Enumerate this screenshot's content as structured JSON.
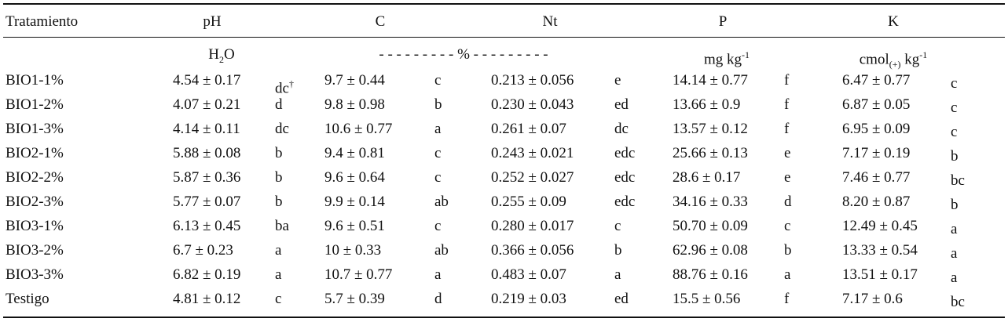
{
  "table": {
    "headers": [
      "Tratamiento",
      "pH",
      "C",
      "Nt",
      "P",
      "K"
    ],
    "units": [
      {
        "base": "H",
        "sub": "2",
        "after": "O"
      },
      {
        "base": "- - - - - - - - - % - - - - - - - - -"
      },
      {
        "base": "mg kg",
        "sup": "-1"
      },
      {
        "base": "cmol",
        "sub": "(+)",
        "after": " kg",
        "sup": "-1"
      }
    ],
    "rows": [
      {
        "name": "BIO1-1%",
        "cells": [
          {
            "value": "4.54 ± 0.17",
            "letter": "dc",
            "mark": "†"
          },
          {
            "value": "9.7 ± 0.44",
            "letter": "c"
          },
          {
            "value": "0.213 ± 0.056",
            "letter": "e"
          },
          {
            "value": "14.14 ± 0.77",
            "letter": "f"
          },
          {
            "value": "6.47 ± 0.77",
            "letter": "c"
          }
        ]
      },
      {
        "name": "BIO1-2%",
        "cells": [
          {
            "value": "4.07 ± 0.21",
            "letter": "d"
          },
          {
            "value": "9.8 ± 0.98",
            "letter": "b"
          },
          {
            "value": "0.230 ± 0.043",
            "letter": "ed"
          },
          {
            "value": "13.66 ± 0.9",
            "letter": "f"
          },
          {
            "value": "6.87 ± 0.05",
            "letter": "c"
          }
        ]
      },
      {
        "name": "BIO1-3%",
        "cells": [
          {
            "value": "4.14 ± 0.11",
            "letter": "dc"
          },
          {
            "value": "10.6 ± 0.77",
            "letter": "a"
          },
          {
            "value": "0.261 ± 0.07",
            "letter": "dc"
          },
          {
            "value": "13.57 ± 0.12",
            "letter": "f"
          },
          {
            "value": "6.95 ± 0.09",
            "letter": "c"
          }
        ]
      },
      {
        "name": "BIO2-1%",
        "cells": [
          {
            "value": "5.88 ± 0.08",
            "letter": "b"
          },
          {
            "value": "9.4 ± 0.81",
            "letter": "c"
          },
          {
            "value": "0.243 ± 0.021",
            "letter": "edc"
          },
          {
            "value": "25.66 ± 0.13",
            "letter": "e"
          },
          {
            "value": "7.17 ± 0.19",
            "letter": "b"
          }
        ]
      },
      {
        "name": "BIO2-2%",
        "cells": [
          {
            "value": "5.87 ± 0.36",
            "letter": "b"
          },
          {
            "value": "9.6 ± 0.64",
            "letter": "c"
          },
          {
            "value": "0.252 ± 0.027",
            "letter": "edc"
          },
          {
            "value": "28.6 ± 0.17",
            "letter": "e"
          },
          {
            "value": "7.46 ± 0.77",
            "letter": "bc"
          }
        ]
      },
      {
        "name": "BIO2-3%",
        "cells": [
          {
            "value": "5.77 ± 0.07",
            "letter": "b"
          },
          {
            "value": "9.9 ± 0.14",
            "letter": "ab"
          },
          {
            "value": "0.255 ± 0.09",
            "letter": "edc"
          },
          {
            "value": "34.16 ± 0.33",
            "letter": "d"
          },
          {
            "value": "8.20 ± 0.87",
            "letter": "b"
          }
        ]
      },
      {
        "name": "BIO3-1%",
        "cells": [
          {
            "value": "6.13 ± 0.45",
            "letter": "ba"
          },
          {
            "value": "9.6 ± 0.51",
            "letter": "c"
          },
          {
            "value": "0.280 ± 0.017",
            "letter": "c"
          },
          {
            "value": "50.70 ± 0.09",
            "letter": "c"
          },
          {
            "value": "12.49 ± 0.45",
            "letter": "a"
          }
        ]
      },
      {
        "name": "BIO3-2%",
        "cells": [
          {
            "value": "6.7 ± 0.23",
            "letter": "a"
          },
          {
            "value": "10 ± 0.33",
            "letter": "ab"
          },
          {
            "value": "0.366 ± 0.056",
            "letter": "b"
          },
          {
            "value": "62.96 ± 0.08",
            "letter": "b"
          },
          {
            "value": "13.33 ± 0.54",
            "letter": "a"
          }
        ]
      },
      {
        "name": "BIO3-3%",
        "cells": [
          {
            "value": "6.82 ± 0.19",
            "letter": "a"
          },
          {
            "value": "10.7 ± 0.77",
            "letter": "a"
          },
          {
            "value": "0.483 ± 0.07",
            "letter": "a"
          },
          {
            "value": "88.76 ± 0.16",
            "letter": "a"
          },
          {
            "value": "13.51 ± 0.17",
            "letter": "a"
          }
        ]
      },
      {
        "name": "Testigo",
        "cells": [
          {
            "value": "4.81 ± 0.12",
            "letter": "c"
          },
          {
            "value": "5.7 ± 0.39",
            "letter": "d"
          },
          {
            "value": "0.219 ± 0.03",
            "letter": "ed"
          },
          {
            "value": "15.5 ± 0.56",
            "letter": "f"
          },
          {
            "value": "7.17 ± 0.6",
            "letter": "bc"
          }
        ]
      }
    ]
  }
}
